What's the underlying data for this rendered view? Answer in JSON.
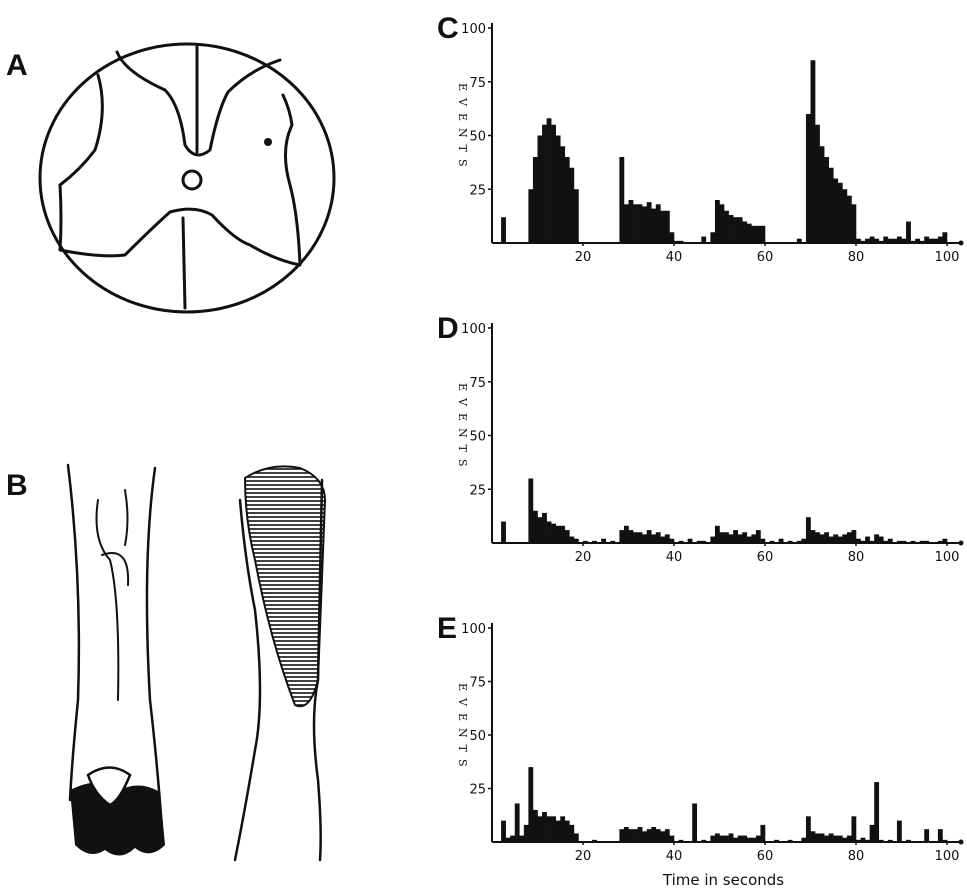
{
  "figure_labels": [
    "A",
    "B"
  ],
  "chart_data": [
    {
      "type": "histogram",
      "title": "C",
      "ylabel": "EVENTS",
      "color": "#111111",
      "xlim": [
        0,
        100
      ],
      "xticks": [
        20,
        40,
        60,
        80,
        100
      ],
      "ylim": [
        0,
        100
      ],
      "yticks": [
        25,
        50,
        75,
        100
      ],
      "bins": [
        0,
        1,
        2,
        3,
        4,
        5,
        6,
        7,
        8,
        9,
        10,
        11,
        12,
        13,
        14,
        15,
        16,
        17,
        18,
        19,
        20,
        21,
        22,
        23,
        24,
        25,
        26,
        27,
        28,
        29,
        30,
        31,
        32,
        33,
        34,
        35,
        36,
        37,
        38,
        39,
        40,
        41,
        42,
        43,
        44,
        45,
        46,
        47,
        48,
        49,
        50,
        51,
        52,
        53,
        54,
        55,
        56,
        57,
        58,
        59,
        60,
        61,
        62,
        63,
        64,
        65,
        66,
        67,
        68,
        69,
        70,
        71,
        72,
        73,
        74,
        75,
        76,
        77,
        78,
        79,
        80,
        81,
        82,
        83,
        84,
        85,
        86,
        87,
        88,
        89,
        90,
        91,
        92,
        93,
        94,
        95,
        96,
        97,
        98,
        99,
        100
      ],
      "values": [
        0,
        0,
        12,
        0,
        0,
        0,
        0,
        0,
        25,
        40,
        50,
        55,
        58,
        55,
        50,
        45,
        40,
        35,
        25,
        0,
        0,
        0,
        0,
        0,
        0,
        0,
        0,
        0,
        40,
        18,
        20,
        18,
        18,
        17,
        19,
        16,
        18,
        15,
        15,
        5,
        1,
        1,
        0,
        0,
        0,
        0,
        3,
        0,
        5,
        20,
        18,
        15,
        13,
        12,
        12,
        10,
        9,
        8,
        8,
        8,
        0,
        0,
        0,
        0,
        0,
        0,
        0,
        2,
        0,
        60,
        85,
        55,
        45,
        40,
        35,
        30,
        28,
        25,
        22,
        18,
        2,
        1,
        2,
        3,
        2,
        1,
        3,
        2,
        2,
        3,
        2,
        10,
        1,
        2,
        1,
        3,
        2,
        2,
        3,
        5
      ]
    },
    {
      "type": "histogram",
      "title": "D",
      "ylabel": "EVENTS",
      "color": "#111111",
      "xlim": [
        0,
        100
      ],
      "xticks": [
        20,
        40,
        60,
        80,
        100
      ],
      "ylim": [
        0,
        100
      ],
      "yticks": [
        25,
        50,
        75,
        100
      ],
      "bins": [
        0,
        1,
        2,
        3,
        4,
        5,
        6,
        7,
        8,
        9,
        10,
        11,
        12,
        13,
        14,
        15,
        16,
        17,
        18,
        19,
        20,
        21,
        22,
        23,
        24,
        25,
        26,
        27,
        28,
        29,
        30,
        31,
        32,
        33,
        34,
        35,
        36,
        37,
        38,
        39,
        40,
        41,
        42,
        43,
        44,
        45,
        46,
        47,
        48,
        49,
        50,
        51,
        52,
        53,
        54,
        55,
        56,
        57,
        58,
        59,
        60,
        61,
        62,
        63,
        64,
        65,
        66,
        67,
        68,
        69,
        70,
        71,
        72,
        73,
        74,
        75,
        76,
        77,
        78,
        79,
        80,
        81,
        82,
        83,
        84,
        85,
        86,
        87,
        88,
        89,
        90,
        91,
        92,
        93,
        94,
        95,
        96,
        97,
        98,
        99,
        100
      ],
      "values": [
        0,
        0,
        10,
        0,
        0,
        0,
        0,
        0,
        30,
        15,
        12,
        14,
        10,
        9,
        8,
        8,
        6,
        3,
        2,
        0,
        1,
        0,
        1,
        0,
        2,
        0,
        1,
        0,
        6,
        8,
        6,
        5,
        5,
        4,
        6,
        4,
        5,
        3,
        4,
        2,
        0,
        1,
        0,
        2,
        0,
        1,
        1,
        0,
        3,
        8,
        5,
        5,
        4,
        6,
        4,
        5,
        3,
        4,
        6,
        2,
        0,
        1,
        0,
        2,
        0,
        1,
        0,
        1,
        2,
        12,
        6,
        5,
        4,
        5,
        3,
        4,
        3,
        4,
        5,
        6,
        2,
        1,
        3,
        1,
        4,
        3,
        1,
        2,
        0,
        1,
        1,
        0,
        1,
        0,
        1,
        1,
        0,
        0,
        1,
        2
      ]
    },
    {
      "type": "histogram",
      "title": "E",
      "ylabel": "EVENTS",
      "xlabel": "Time in seconds",
      "color": "#111111",
      "xlim": [
        0,
        100
      ],
      "xticks": [
        20,
        40,
        60,
        80,
        100
      ],
      "ylim": [
        0,
        100
      ],
      "yticks": [
        25,
        50,
        75,
        100
      ],
      "bins": [
        0,
        1,
        2,
        3,
        4,
        5,
        6,
        7,
        8,
        9,
        10,
        11,
        12,
        13,
        14,
        15,
        16,
        17,
        18,
        19,
        20,
        21,
        22,
        23,
        24,
        25,
        26,
        27,
        28,
        29,
        30,
        31,
        32,
        33,
        34,
        35,
        36,
        37,
        38,
        39,
        40,
        41,
        42,
        43,
        44,
        45,
        46,
        47,
        48,
        49,
        50,
        51,
        52,
        53,
        54,
        55,
        56,
        57,
        58,
        59,
        60,
        61,
        62,
        63,
        64,
        65,
        66,
        67,
        68,
        69,
        70,
        71,
        72,
        73,
        74,
        75,
        76,
        77,
        78,
        79,
        80,
        81,
        82,
        83,
        84,
        85,
        86,
        87,
        88,
        89,
        90,
        91,
        92,
        93,
        94,
        95,
        96,
        97,
        98,
        99,
        100
      ],
      "values": [
        0,
        0,
        10,
        2,
        3,
        18,
        3,
        8,
        35,
        15,
        12,
        14,
        12,
        12,
        10,
        12,
        10,
        8,
        4,
        0,
        0,
        0,
        1,
        0,
        0,
        0,
        0,
        0,
        6,
        7,
        6,
        6,
        7,
        5,
        6,
        7,
        6,
        5,
        6,
        3,
        0,
        1,
        0,
        0,
        18,
        0,
        1,
        0,
        3,
        4,
        3,
        3,
        4,
        2,
        3,
        3,
        2,
        2,
        3,
        8,
        0,
        0,
        1,
        0,
        0,
        1,
        0,
        0,
        2,
        12,
        5,
        4,
        4,
        3,
        4,
        3,
        3,
        2,
        3,
        12,
        1,
        2,
        1,
        8,
        28,
        1,
        0,
        1,
        0,
        10,
        0,
        1,
        0,
        0,
        0,
        6,
        0,
        0,
        6,
        1
      ]
    }
  ]
}
